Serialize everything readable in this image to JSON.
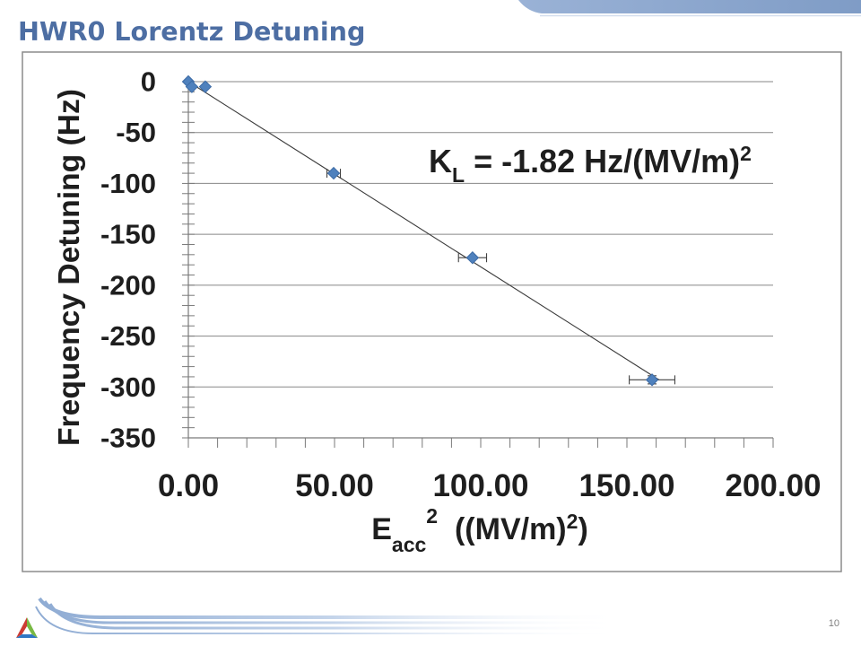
{
  "slide": {
    "title": "HWR0 Lorentz Detuning",
    "page_number": "10"
  },
  "icons": {
    "footer_logo": "triangle-logo-icon"
  },
  "colors": {
    "title": "#4d6ea3",
    "header_band": "#8fa9cf",
    "footer_stripes": "#a6bedd",
    "marker_fill": "#4f81bd",
    "marker_stroke": "#3d6ba5",
    "gridline": "#878787",
    "text": "#1e1e1e"
  },
  "chart_data": {
    "type": "scatter",
    "ylabel": "Frequency Detuning (Hz)",
    "xlabel": {
      "base": "E",
      "sub": "acc",
      "sup": "2",
      "rest": "  ((MV/m)",
      "rest_sup": "2",
      "end": ")"
    },
    "xlim": [
      0,
      200
    ],
    "ylim": [
      -350,
      0
    ],
    "x_ticks": [
      0,
      50,
      100,
      150,
      200
    ],
    "x_tick_labels": [
      "0.00",
      "50.00",
      "100.00",
      "150.00",
      "200.00"
    ],
    "y_ticks": [
      0,
      -50,
      -100,
      -150,
      -200,
      -250,
      -300,
      -350
    ],
    "y_tick_labels": [
      "0",
      "-50",
      "-100",
      "-150",
      "-200",
      "-250",
      "-300",
      "-350"
    ],
    "x_minor_step": 10,
    "y_minor_step": 10,
    "grid": true,
    "legend": false,
    "series": [
      {
        "points": [
          {
            "x": 0,
            "y": 0
          },
          {
            "x": 1.2,
            "y": -5
          },
          {
            "x": 5.8,
            "y": -5
          },
          {
            "x": 49.7,
            "y": -90,
            "x_err": 2.3
          },
          {
            "x": 97.2,
            "y": -173,
            "x_err": 4.8
          },
          {
            "x": 158.6,
            "y": -293,
            "x_err": 7.8,
            "y_err": 4
          }
        ]
      }
    ],
    "trendline": {
      "type": "linear",
      "slope": -1.82,
      "intercept": 0,
      "x_range": [
        0,
        161
      ]
    },
    "annotation": {
      "base": "K",
      "sub": "L",
      "rest": " = -1.82 Hz/(MV/m)",
      "sup": "2"
    }
  }
}
